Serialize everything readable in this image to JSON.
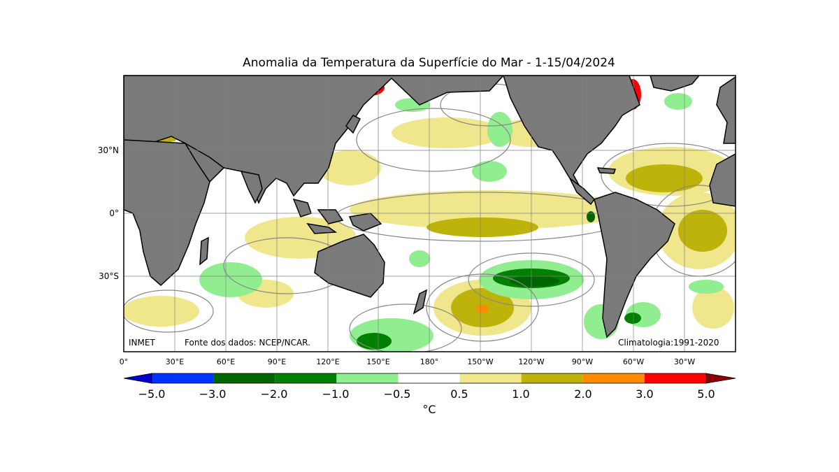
{
  "title": "Anomalia da Temperatura da Superfície do Mar - 1-15/04/2024",
  "lat_labels": [
    "30°N",
    "0°",
    "30°S"
  ],
  "lon_labels": [
    "0°",
    "30°E",
    "60°E",
    "90°E",
    "120°E",
    "150°E",
    "180°",
    "150°W",
    "120°W",
    "90°W",
    "60°W",
    "30°W"
  ],
  "annotations": {
    "source_left": "INMET",
    "source_data": "Fonte dos dados: NCEP/NCAR.",
    "climatology": "Climatologia:1991-2020"
  },
  "colorbar": {
    "unit": "°C",
    "ticks": [
      "−5.0",
      "−3.0",
      "−2.0",
      "−1.0",
      "−0.5",
      "0.5",
      "1.0",
      "2.0",
      "3.0",
      "5.0"
    ],
    "colors": [
      "#0000cd",
      "#0033ff",
      "#006400",
      "#008000",
      "#90ee90",
      "#ffffff",
      "#f0e68c",
      "#bdb30a",
      "#ff8c00",
      "#ff0000",
      "#8b0000"
    ],
    "land_color": "#7a7a7a"
  }
}
